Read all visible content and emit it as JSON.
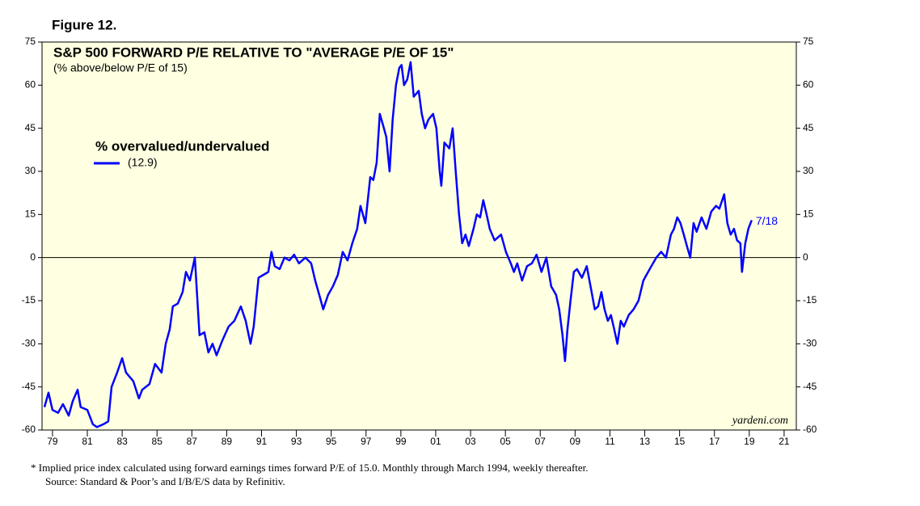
{
  "chart_data": {
    "type": "line",
    "figure_label": "Figure 12.",
    "title": "S&P 500 FORWARD P/E RELATIVE TO \"AVERAGE P/E OF 15\"",
    "subtitle": "(% above/below P/E of 15)",
    "legend_value": "(12.9)",
    "end_annotation": "7/18",
    "watermark": "yardeni.com",
    "footnote": "*   Implied price index calculated using forward earnings times forward P/E of 15.0. Monthly through March 1994, weekly thereafter.",
    "source": "Source: Standard & Poor’s and I/B/E/S data by Refinitiv.",
    "xlim": [
      1978.4,
      2021.7
    ],
    "ylim": [
      -60,
      75
    ],
    "yticks": [
      -60,
      -45,
      -30,
      -15,
      0,
      15,
      30,
      45,
      60,
      75
    ],
    "xticks": [
      {
        "value": 1979,
        "label": "79"
      },
      {
        "value": 1981,
        "label": "81"
      },
      {
        "value": 1983,
        "label": "83"
      },
      {
        "value": 1985,
        "label": "85"
      },
      {
        "value": 1987,
        "label": "87"
      },
      {
        "value": 1989,
        "label": "89"
      },
      {
        "value": 1991,
        "label": "91"
      },
      {
        "value": 1993,
        "label": "93"
      },
      {
        "value": 1995,
        "label": "95"
      },
      {
        "value": 1997,
        "label": "97"
      },
      {
        "value": 1999,
        "label": "99"
      },
      {
        "value": 2001,
        "label": "01"
      },
      {
        "value": 2003,
        "label": "03"
      },
      {
        "value": 2005,
        "label": "05"
      },
      {
        "value": 2007,
        "label": "07"
      },
      {
        "value": 2009,
        "label": "09"
      },
      {
        "value": 2011,
        "label": "11"
      },
      {
        "value": 2013,
        "label": "13"
      },
      {
        "value": 2015,
        "label": "15"
      },
      {
        "value": 2017,
        "label": "17"
      },
      {
        "value": 2019,
        "label": "19"
      },
      {
        "value": 2021,
        "label": "21"
      }
    ],
    "x": [
      1978.54,
      1978.77,
      1979.0,
      1979.32,
      1979.6,
      1979.93,
      1980.16,
      1980.44,
      1980.62,
      1981.0,
      1981.32,
      1981.55,
      1981.92,
      1982.2,
      1982.39,
      1982.71,
      1983.0,
      1983.22,
      1983.64,
      1983.96,
      1984.15,
      1984.57,
      1984.89,
      1985.26,
      1985.5,
      1985.73,
      1985.91,
      1986.19,
      1986.47,
      1986.66,
      1986.89,
      1987.17,
      1987.44,
      1987.72,
      1987.95,
      1988.19,
      1988.42,
      1988.74,
      1989.11,
      1989.44,
      1989.81,
      1990.09,
      1990.37,
      1990.55,
      1990.83,
      1991.11,
      1991.39,
      1991.57,
      1991.76,
      1992.04,
      1992.32,
      1992.6,
      1992.87,
      1993.15,
      1993.52,
      1993.85,
      1994.08,
      1994.36,
      1994.54,
      1994.82,
      1995.1,
      1995.38,
      1995.66,
      1995.94,
      1996.21,
      1996.49,
      1996.68,
      1996.96,
      1997.24,
      1997.42,
      1997.61,
      1997.79,
      1997.98,
      1998.16,
      1998.35,
      1998.53,
      1998.72,
      1998.91,
      1999.04,
      1999.18,
      1999.37,
      1999.56,
      1999.74,
      2000.02,
      2000.2,
      2000.39,
      2000.58,
      2000.85,
      2001.04,
      2001.23,
      2001.32,
      2001.5,
      2001.78,
      2001.97,
      2002.15,
      2002.34,
      2002.52,
      2002.71,
      2002.9,
      2003.17,
      2003.36,
      2003.55,
      2003.73,
      2003.92,
      2004.1,
      2004.38,
      2004.75,
      2005.03,
      2005.31,
      2005.49,
      2005.68,
      2005.96,
      2006.24,
      2006.52,
      2006.79,
      2007.07,
      2007.35,
      2007.63,
      2007.91,
      2008.09,
      2008.28,
      2008.42,
      2008.56,
      2008.74,
      2008.93,
      2009.11,
      2009.39,
      2009.67,
      2009.95,
      2010.13,
      2010.32,
      2010.51,
      2010.69,
      2010.88,
      2011.06,
      2011.25,
      2011.43,
      2011.62,
      2011.8,
      2012.08,
      2012.36,
      2012.64,
      2012.92,
      2013.1,
      2013.38,
      2013.66,
      2013.94,
      2014.22,
      2014.5,
      2014.68,
      2014.87,
      2015.05,
      2015.24,
      2015.42,
      2015.61,
      2015.8,
      2015.98,
      2016.26,
      2016.54,
      2016.82,
      2017.09,
      2017.28,
      2017.56,
      2017.74,
      2017.93,
      2018.12,
      2018.3,
      2018.49,
      2018.58,
      2018.77,
      2018.95,
      2019.14
    ],
    "series": [
      {
        "name": "% overvalued/undervalued",
        "color": "#0000ff",
        "values": [
          -52,
          -47,
          -53,
          -54,
          -51,
          -55,
          -50,
          -46,
          -52,
          -53,
          -58,
          -59,
          -58,
          -57,
          -45,
          -40,
          -35,
          -40,
          -43,
          -49,
          -46,
          -44,
          -37,
          -40,
          -30,
          -25,
          -17,
          -16,
          -12,
          -5,
          -8,
          0,
          -27,
          -26,
          -33,
          -30,
          -34,
          -29,
          -24,
          -22,
          -17,
          -22,
          -30,
          -24,
          -7,
          -6,
          -5,
          2,
          -3,
          -4,
          0,
          -1,
          1,
          -2,
          0,
          -2,
          -8,
          -14,
          -18,
          -13,
          -10,
          -6,
          2,
          -1,
          5,
          10,
          18,
          12,
          28,
          27,
          33,
          50,
          46,
          42,
          30,
          48,
          60,
          66,
          67,
          60,
          62,
          68,
          56,
          58,
          50,
          45,
          48,
          50,
          45,
          30,
          25,
          40,
          38,
          45,
          30,
          15,
          5,
          8,
          4,
          10,
          15,
          14,
          20,
          15,
          10,
          6,
          8,
          2,
          -2,
          -5,
          -2,
          -8,
          -3,
          -2,
          1,
          -5,
          0,
          -10,
          -13,
          -18,
          -27,
          -36,
          -25,
          -15,
          -5,
          -4,
          -7,
          -3,
          -12,
          -18,
          -17,
          -12,
          -18,
          -22,
          -20,
          -25,
          -30,
          -22,
          -24,
          -20,
          -18,
          -15,
          -8,
          -6,
          -3,
          0,
          2,
          0,
          8,
          10,
          14,
          12,
          8,
          4,
          0,
          12,
          9,
          14,
          10,
          16,
          18,
          17,
          22,
          12,
          8,
          10,
          6,
          5,
          -5,
          5,
          10,
          13
        ]
      }
    ]
  }
}
